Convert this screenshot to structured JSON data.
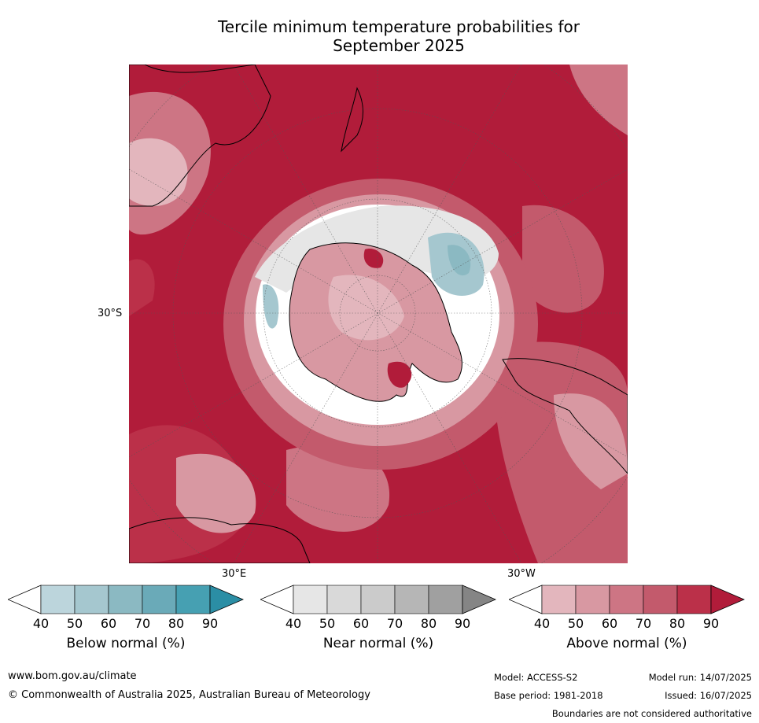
{
  "title_line1": "Tercile minimum temperature probabilities for",
  "title_line2": "September 2025",
  "map_labels": {
    "lat_30s": "30°S",
    "lon_30e": "30°E",
    "lon_30w": "30°W"
  },
  "colorbars": [
    {
      "label": "Below normal (%)",
      "ticks": [
        "40",
        "50",
        "60",
        "70",
        "80",
        "90"
      ],
      "colors": [
        "#ffffff",
        "#bcd5dc",
        "#a5c7cf",
        "#8bb9c2",
        "#6aaab8",
        "#46a0b2",
        "#2b8ea5"
      ]
    },
    {
      "label": "Near normal (%)",
      "ticks": [
        "40",
        "50",
        "60",
        "70",
        "80",
        "90"
      ],
      "colors": [
        "#ffffff",
        "#e6e6e6",
        "#d9d9d9",
        "#cbcbcb",
        "#b6b6b6",
        "#a0a0a0",
        "#858585"
      ]
    },
    {
      "label": "Above normal (%)",
      "ticks": [
        "40",
        "50",
        "60",
        "70",
        "80",
        "90"
      ],
      "colors": [
        "#ffffff",
        "#e3b6bd",
        "#d898a2",
        "#cd7584",
        "#c35a6c",
        "#bb3049",
        "#b11c3a"
      ]
    }
  ],
  "footer": {
    "website": "www.bom.gov.au/climate",
    "copyright": "© Commonwealth of Australia 2025, Australian Bureau of Meteorology",
    "model": "Model: ACCESS-S2",
    "base_period": "Base period: 1981-2018",
    "model_run": "Model run: 14/07/2025",
    "issued": "Issued: 16/07/2025",
    "disclaimer": "Boundaries are not considered authoritative"
  }
}
